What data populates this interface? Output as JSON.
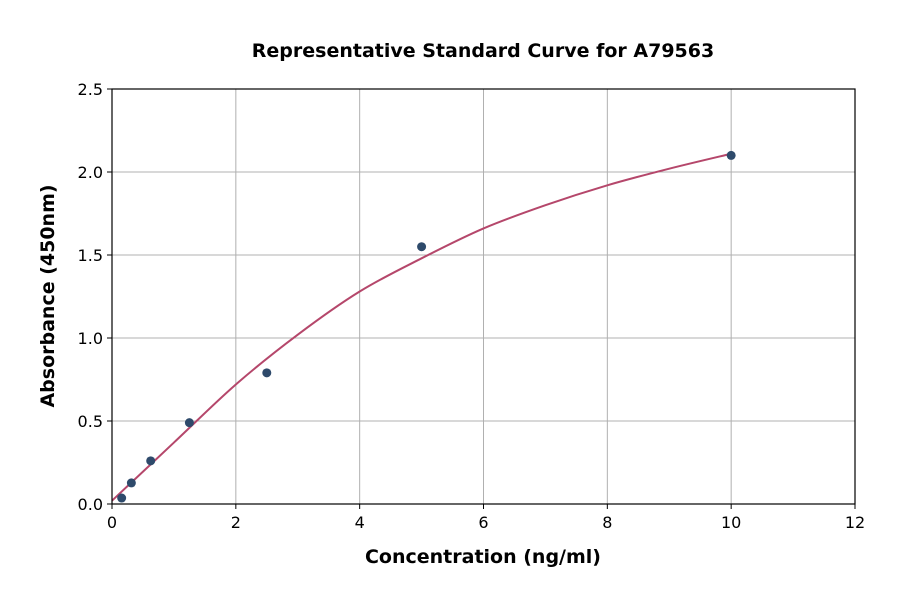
{
  "chart_data": {
    "type": "scatter",
    "title": "Representative Standard Curve for A79563",
    "xlabel": "Concentration (ng/ml)",
    "ylabel": "Absorbance (450nm)",
    "xlim": [
      0,
      12
    ],
    "ylim": [
      0,
      2.5
    ],
    "xticks": [
      0,
      2,
      4,
      6,
      8,
      10,
      12
    ],
    "yticks": [
      0.0,
      0.5,
      1.0,
      1.5,
      2.0,
      2.5
    ],
    "xtick_labels": [
      "0",
      "2",
      "4",
      "6",
      "8",
      "10",
      "12"
    ],
    "ytick_labels": [
      "0.0",
      "0.5",
      "1.0",
      "1.5",
      "2.0",
      "2.5"
    ],
    "grid": true,
    "points": {
      "x": [
        0.156,
        0.313,
        0.625,
        1.25,
        2.5,
        5,
        10
      ],
      "y": [
        0.036,
        0.127,
        0.26,
        0.49,
        0.79,
        1.55,
        2.1
      ]
    },
    "fit_curve": {
      "x": [
        0,
        1,
        2,
        3,
        4,
        5,
        6,
        7,
        8,
        9,
        10
      ],
      "y": [
        0.02,
        0.37,
        0.72,
        1.02,
        1.28,
        1.48,
        1.66,
        1.8,
        1.92,
        2.02,
        2.11
      ]
    },
    "colors": {
      "points": "#2e4a6b",
      "curve": "#b5476b",
      "grid": "#b0b0b0"
    }
  }
}
